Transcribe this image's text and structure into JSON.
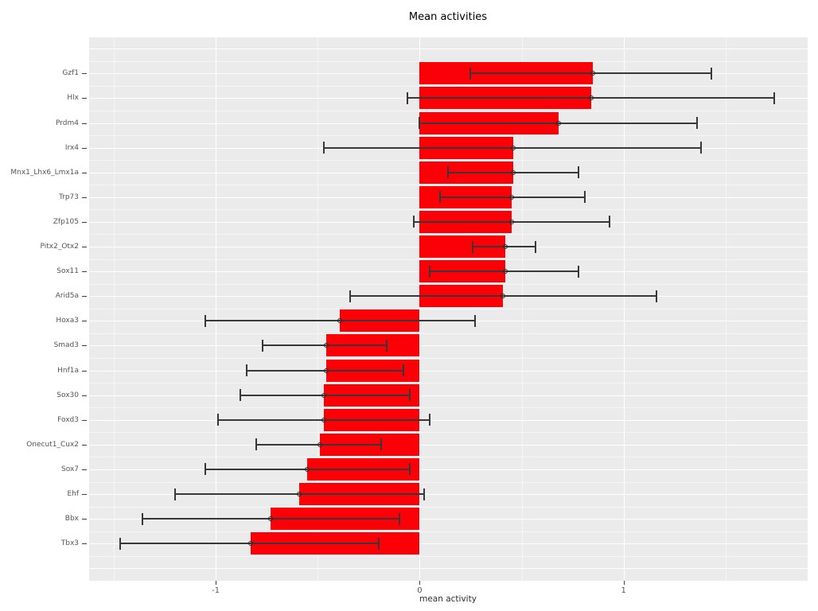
{
  "title": "Mean activities",
  "colors": {
    "bar": "#fb0007",
    "panel_background": "#ebebeb",
    "grid": "#ffffff",
    "errorbar": "#383838",
    "tick_label": "#545454",
    "title_text": "#000000"
  },
  "chart_data": {
    "type": "bar",
    "orientation": "horizontal",
    "title": "Mean activities",
    "xlabel": "mean activity",
    "ylabel": "",
    "xlim": [
      -1.62,
      1.9
    ],
    "xticks": [
      -1,
      0,
      1
    ],
    "xtick_labels": [
      "-1",
      "0",
      "1"
    ],
    "grid": true,
    "legend": false,
    "error_marker": "open-circle",
    "categories": [
      "Gzf1",
      "Hlx",
      "Prdm4",
      "Irx4",
      "Mnx1_Lhx6_Lmx1a",
      "Trp73",
      "Zfp105",
      "Pitx2_Otx2",
      "Sox11",
      "Arid5a",
      "Hoxa3",
      "Smad3",
      "Hnf1a",
      "Sox30",
      "Foxd3",
      "Onecut1_Cux2",
      "Sox7",
      "Ehf",
      "Bbx",
      "Tbx3"
    ],
    "values": [
      0.85,
      0.84,
      0.68,
      0.46,
      0.46,
      0.45,
      0.45,
      0.42,
      0.42,
      0.41,
      -0.39,
      -0.46,
      -0.46,
      -0.47,
      -0.47,
      -0.49,
      -0.55,
      -0.59,
      -0.73,
      -0.83
    ],
    "error_low": [
      0.25,
      -0.06,
      0.0,
      -0.47,
      0.14,
      0.1,
      -0.03,
      0.26,
      0.05,
      -0.34,
      -1.05,
      -0.77,
      -0.85,
      -0.88,
      -0.99,
      -0.8,
      -1.05,
      -1.2,
      -1.36,
      -1.47
    ],
    "error_high": [
      1.43,
      1.74,
      1.36,
      1.38,
      0.78,
      0.81,
      0.93,
      0.57,
      0.78,
      1.16,
      0.27,
      -0.16,
      -0.08,
      -0.05,
      0.05,
      -0.19,
      -0.05,
      0.02,
      -0.1,
      -0.2
    ]
  }
}
